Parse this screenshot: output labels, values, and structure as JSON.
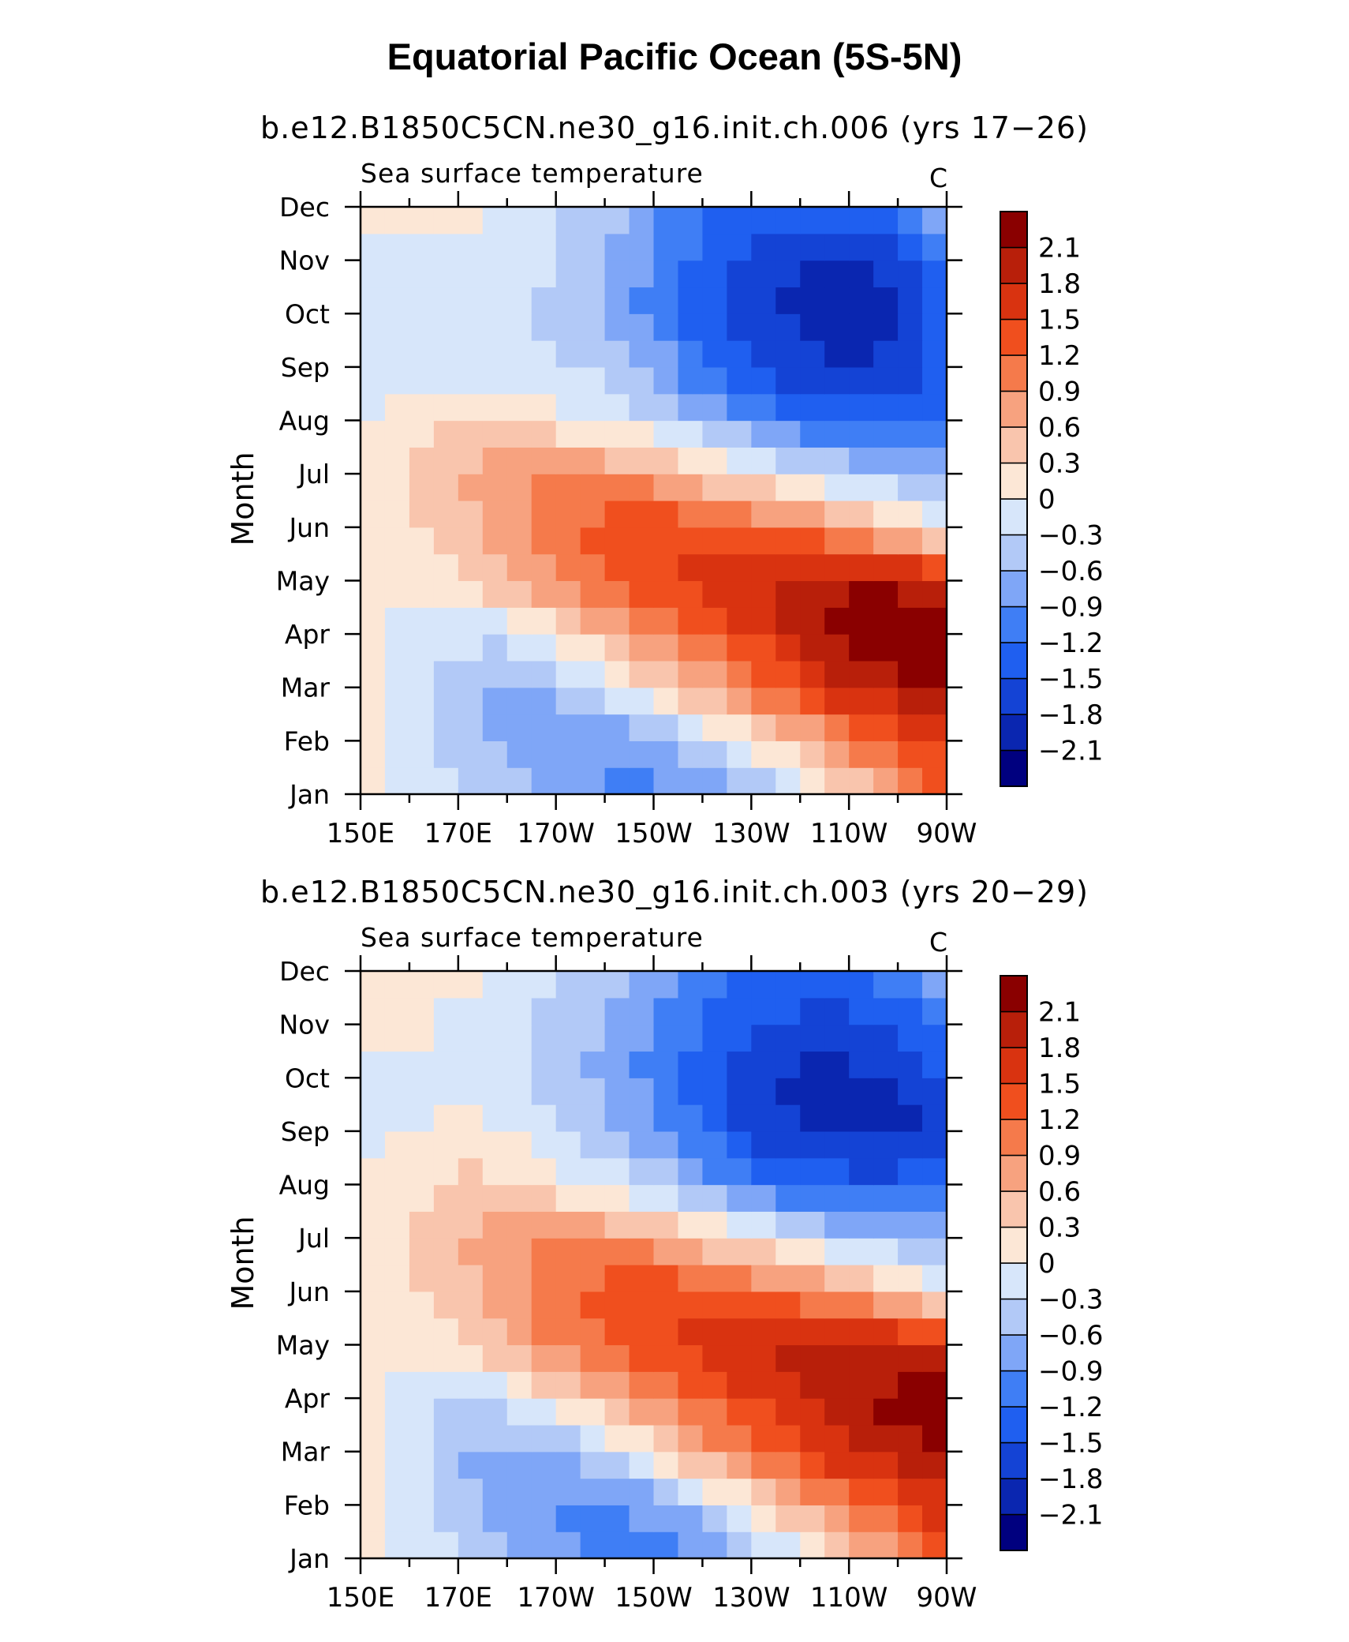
{
  "title": "Equatorial Pacific Ocean (5S-5N)",
  "colors": {
    "palette": [
      "#00007f",
      "#0a26b0",
      "#1443d5",
      "#1f5ff0",
      "#3f7ef5",
      "#7fa6f7",
      "#b2c9f7",
      "#d7e6fa",
      "#fce7d6",
      "#f9c5ad",
      "#f7a27f",
      "#f57a4b",
      "#f04f1e",
      "#d93310",
      "#b81f0a",
      "#8a0000"
    ]
  },
  "chart_data": [
    {
      "type": "heatmap",
      "title": "b.e12.B1850C5CN.ne30_g16.init.ch.006 (yrs 17−26)",
      "subtitle": "Sea surface temperature",
      "units": "C",
      "ylabel": "Month",
      "x_tick_labels": [
        "150E",
        "170E",
        "170W",
        "150W",
        "130W",
        "110W",
        "90W"
      ],
      "x_tick_longitudes": [
        150,
        170,
        190,
        210,
        230,
        250,
        270
      ],
      "y_tick_labels": [
        "Jan",
        "Feb",
        "Mar",
        "Apr",
        "May",
        "Jun",
        "Jul",
        "Aug",
        "Sep",
        "Oct",
        "Nov",
        "Dec"
      ],
      "xlim": [
        150,
        270
      ],
      "ylim": [
        1,
        12
      ],
      "colorbar_levels": [
        -2.1,
        -1.8,
        -1.5,
        -1.2,
        -0.9,
        -0.6,
        -0.3,
        0,
        0.3,
        0.6,
        0.9,
        1.2,
        1.5,
        1.8,
        2.1
      ],
      "colorbar_labels": [
        "2.1",
        "1.8",
        "1.5",
        "1.2",
        "0.9",
        "0.6",
        "0.3",
        "0",
        "−0.3",
        "−0.6",
        "−0.9",
        "−1.2",
        "−1.5",
        "−1.8",
        "−2.1"
      ],
      "grid_x": [
        150,
        160,
        170,
        180,
        190,
        200,
        210,
        220,
        230,
        240,
        250,
        260,
        270
      ],
      "grid_y": [
        1,
        2,
        3,
        4,
        5,
        6,
        7,
        8,
        9,
        10,
        11,
        12
      ],
      "values": [
        [
          0.1,
          -0.1,
          -0.3,
          -0.5,
          -0.7,
          -0.9,
          -1.0,
          -0.9,
          -0.6,
          -0.3,
          0.3,
          0.8,
          1.2
        ],
        [
          0.1,
          -0.1,
          -0.4,
          -0.7,
          -0.9,
          -0.9,
          -0.7,
          -0.3,
          0.2,
          0.6,
          1.0,
          1.3,
          1.6
        ],
        [
          0.1,
          -0.2,
          -0.5,
          -0.8,
          -0.6,
          -0.2,
          0.3,
          0.7,
          1.0,
          1.4,
          1.8,
          2.0,
          2.2
        ],
        [
          0.1,
          -0.1,
          -0.2,
          -0.2,
          0.2,
          0.6,
          0.9,
          1.2,
          1.5,
          1.9,
          2.2,
          2.3,
          2.3
        ],
        [
          0.1,
          0.1,
          0.3,
          0.6,
          0.9,
          1.2,
          1.4,
          1.6,
          1.8,
          2.0,
          2.1,
          2.1,
          1.7
        ],
        [
          0.1,
          0.2,
          0.5,
          0.8,
          1.1,
          1.3,
          1.4,
          1.4,
          1.2,
          1.0,
          0.7,
          0.3,
          0.0
        ],
        [
          0.1,
          0.3,
          0.6,
          0.8,
          0.9,
          0.9,
          0.7,
          0.4,
          0.1,
          -0.2,
          -0.4,
          -0.5,
          -0.6
        ],
        [
          0.0,
          0.2,
          0.3,
          0.2,
          0.1,
          -0.1,
          -0.3,
          -0.6,
          -0.9,
          -1.2,
          -1.3,
          -1.3,
          -1.2
        ],
        [
          -0.2,
          -0.1,
          -0.1,
          -0.1,
          -0.2,
          -0.4,
          -0.7,
          -1.2,
          -1.5,
          -1.7,
          -1.8,
          -1.7,
          -1.4
        ],
        [
          -0.1,
          -0.1,
          -0.1,
          -0.2,
          -0.4,
          -0.7,
          -1.0,
          -1.4,
          -1.7,
          -1.9,
          -2.1,
          -1.8,
          -1.4
        ],
        [
          -0.1,
          -0.1,
          -0.1,
          -0.1,
          -0.3,
          -0.6,
          -0.9,
          -1.3,
          -1.6,
          -1.8,
          -1.8,
          -1.6,
          -1.2
        ],
        [
          0.1,
          0.1,
          0.1,
          -0.1,
          -0.3,
          -0.5,
          -0.8,
          -1.1,
          -1.3,
          -1.3,
          -1.3,
          -1.1,
          -0.6
        ]
      ]
    },
    {
      "type": "heatmap",
      "title": "b.e12.B1850C5CN.ne30_g16.init.ch.003 (yrs 20−29)",
      "subtitle": "Sea surface temperature",
      "units": "C",
      "ylabel": "Month",
      "x_tick_labels": [
        "150E",
        "170E",
        "170W",
        "150W",
        "130W",
        "110W",
        "90W"
      ],
      "x_tick_longitudes": [
        150,
        170,
        190,
        210,
        230,
        250,
        270
      ],
      "y_tick_labels": [
        "Jan",
        "Feb",
        "Mar",
        "Apr",
        "May",
        "Jun",
        "Jul",
        "Aug",
        "Sep",
        "Oct",
        "Nov",
        "Dec"
      ],
      "xlim": [
        150,
        270
      ],
      "ylim": [
        1,
        12
      ],
      "colorbar_levels": [
        -2.1,
        -1.8,
        -1.5,
        -1.2,
        -0.9,
        -0.6,
        -0.3,
        0,
        0.3,
        0.6,
        0.9,
        1.2,
        1.5,
        1.8,
        2.1
      ],
      "colorbar_labels": [
        "2.1",
        "1.8",
        "1.5",
        "1.2",
        "0.9",
        "0.6",
        "0.3",
        "0",
        "−0.3",
        "−0.6",
        "−0.9",
        "−1.2",
        "−1.5",
        "−1.8",
        "−2.1"
      ],
      "grid_x": [
        150,
        160,
        170,
        180,
        190,
        200,
        210,
        220,
        230,
        240,
        250,
        260,
        270
      ],
      "grid_y": [
        1,
        2,
        3,
        4,
        5,
        6,
        7,
        8,
        9,
        10,
        11,
        12
      ],
      "values": [
        [
          0.1,
          -0.1,
          -0.3,
          -0.5,
          -0.8,
          -1.0,
          -1.0,
          -0.9,
          -0.6,
          -0.2,
          0.3,
          0.9,
          1.3
        ],
        [
          0.1,
          -0.2,
          -0.5,
          -0.8,
          -1.0,
          -1.0,
          -0.8,
          -0.4,
          0.2,
          0.7,
          1.1,
          1.4,
          1.7
        ],
        [
          0.1,
          -0.2,
          -0.6,
          -0.7,
          -0.6,
          -0.3,
          0.2,
          0.7,
          1.1,
          1.5,
          1.8,
          2.0,
          2.2
        ],
        [
          0.1,
          -0.1,
          -0.3,
          -0.2,
          0.2,
          0.6,
          0.9,
          1.2,
          1.5,
          1.8,
          2.0,
          2.2,
          2.3
        ],
        [
          0.1,
          0.1,
          0.3,
          0.6,
          1.0,
          1.2,
          1.4,
          1.6,
          1.8,
          1.9,
          2.0,
          1.9,
          1.6
        ],
        [
          0.1,
          0.2,
          0.5,
          0.8,
          1.1,
          1.3,
          1.4,
          1.4,
          1.2,
          1.0,
          0.7,
          0.4,
          0.1
        ],
        [
          0.1,
          0.3,
          0.6,
          0.8,
          0.9,
          0.9,
          0.7,
          0.4,
          0.1,
          -0.2,
          -0.4,
          -0.5,
          -0.6
        ],
        [
          0.0,
          0.2,
          0.4,
          0.3,
          0.1,
          -0.1,
          -0.4,
          -0.7,
          -1.0,
          -1.3,
          -1.4,
          -1.4,
          -1.3
        ],
        [
          -0.1,
          0.0,
          0.1,
          0.0,
          -0.2,
          -0.5,
          -0.8,
          -1.2,
          -1.6,
          -1.8,
          -1.9,
          -1.9,
          -1.7
        ],
        [
          -0.1,
          -0.1,
          -0.1,
          -0.2,
          -0.4,
          -0.7,
          -1.0,
          -1.4,
          -1.7,
          -1.9,
          -1.9,
          -1.8,
          -1.5
        ],
        [
          0.1,
          0.1,
          -0.1,
          -0.2,
          -0.4,
          -0.6,
          -0.9,
          -1.2,
          -1.5,
          -1.6,
          -1.6,
          -1.5,
          -1.1
        ],
        [
          0.1,
          0.1,
          0.1,
          -0.1,
          -0.3,
          -0.5,
          -0.8,
          -1.0,
          -1.2,
          -1.2,
          -1.2,
          -1.0,
          -0.6
        ]
      ]
    }
  ]
}
